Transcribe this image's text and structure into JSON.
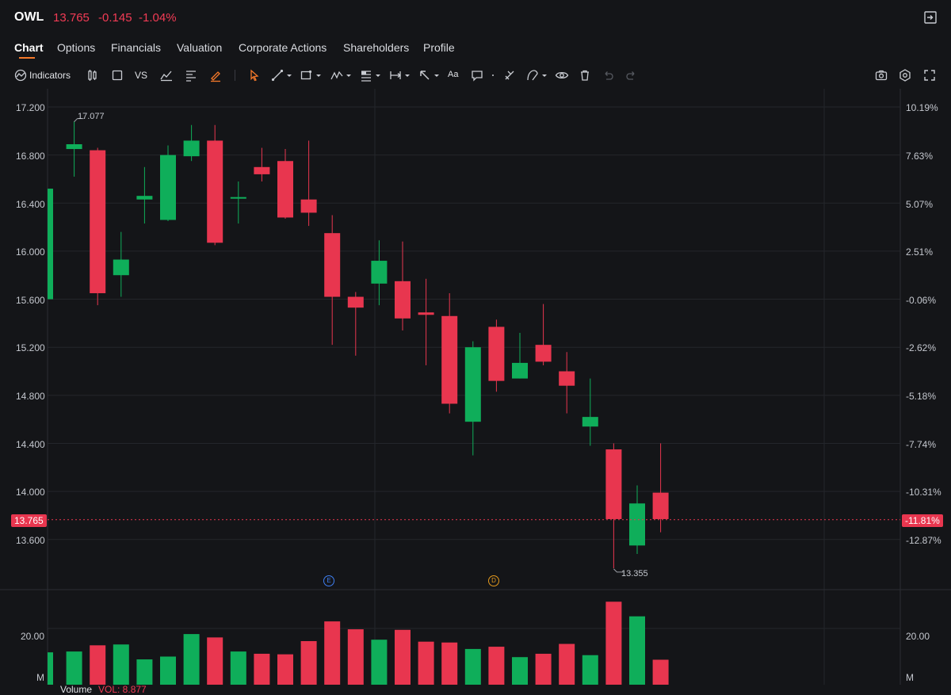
{
  "header": {
    "ticker": "OWL",
    "price": "13.765",
    "change": "-0.145",
    "change_pct": "-1.04%"
  },
  "tabs": [
    {
      "label": "Chart",
      "active": true
    },
    {
      "label": "Options"
    },
    {
      "label": "Financials"
    },
    {
      "label": "Valuation"
    },
    {
      "label": "Corporate Actions"
    },
    {
      "label": "Shareholders"
    },
    {
      "label": "Profile"
    }
  ],
  "toolbar": {
    "indicators_label": "Indicators",
    "vs_label": "VS",
    "text_tool_label": "Aa"
  },
  "colors": {
    "up": "#0fae5a",
    "down": "#e8364f",
    "accent": "#f5792a",
    "background": "#141518",
    "grid": "#24262b"
  },
  "axis": {
    "left_ticks": [
      "17.200",
      "16.800",
      "16.400",
      "16.000",
      "15.600",
      "15.200",
      "14.800",
      "14.400",
      "14.000",
      "13.600"
    ],
    "right_ticks": [
      "10.19%",
      "7.63%",
      "5.07%",
      "2.51%",
      "-0.06%",
      "-2.62%",
      "-5.18%",
      "-7.74%",
      "-10.31%",
      "-12.87%"
    ],
    "current_price_tag": "13.765",
    "current_pct_tag": "-11.81%",
    "volume_tick": "20.00",
    "volume_unit": "M"
  },
  "annotations": {
    "high": "17.077",
    "low": "13.355",
    "earnings_marker": "E",
    "dividend_marker": "D"
  },
  "volume": {
    "title": "Volume",
    "value_label": "VOL: 8.877"
  },
  "chart_data": {
    "type": "candlestick",
    "price_range": [
      13.2,
      17.3
    ],
    "volume_range": [
      0,
      30
    ],
    "candles": [
      {
        "o": 15.6,
        "c": 16.52,
        "h": 16.52,
        "l": 15.6,
        "v": 11.5
      },
      {
        "o": 16.85,
        "c": 16.89,
        "h": 17.08,
        "l": 16.62,
        "v": 11.8
      },
      {
        "o": 16.84,
        "c": 15.65,
        "h": 16.86,
        "l": 15.55,
        "v": 14.0
      },
      {
        "o": 15.8,
        "c": 15.93,
        "h": 16.16,
        "l": 15.62,
        "v": 14.3
      },
      {
        "o": 16.43,
        "c": 16.46,
        "h": 16.7,
        "l": 16.23,
        "v": 9.0
      },
      {
        "o": 16.26,
        "c": 16.8,
        "h": 16.88,
        "l": 16.25,
        "v": 10.0
      },
      {
        "o": 16.79,
        "c": 16.92,
        "h": 17.05,
        "l": 16.75,
        "v": 18.0
      },
      {
        "o": 16.92,
        "c": 16.07,
        "h": 17.05,
        "l": 16.05,
        "v": 16.8
      },
      {
        "o": 16.45,
        "c": 16.45,
        "h": 16.58,
        "l": 16.23,
        "v": 11.8
      },
      {
        "o": 16.7,
        "c": 16.64,
        "h": 16.86,
        "l": 16.58,
        "v": 11.0
      },
      {
        "o": 16.75,
        "c": 16.28,
        "h": 16.85,
        "l": 16.27,
        "v": 10.8
      },
      {
        "o": 16.43,
        "c": 16.32,
        "h": 16.92,
        "l": 16.21,
        "v": 15.5
      },
      {
        "o": 16.15,
        "c": 15.62,
        "h": 16.3,
        "l": 15.22,
        "v": 22.5
      },
      {
        "o": 15.62,
        "c": 15.53,
        "h": 15.66,
        "l": 15.13,
        "v": 19.7
      },
      {
        "o": 15.73,
        "c": 15.92,
        "h": 16.09,
        "l": 15.55,
        "v": 16.0
      },
      {
        "o": 15.75,
        "c": 15.44,
        "h": 16.08,
        "l": 15.34,
        "v": 19.5
      },
      {
        "o": 15.49,
        "c": 15.47,
        "h": 15.77,
        "l": 15.05,
        "v": 15.3
      },
      {
        "o": 15.46,
        "c": 14.73,
        "h": 15.65,
        "l": 14.65,
        "v": 15.0
      },
      {
        "o": 14.58,
        "c": 15.2,
        "h": 15.25,
        "l": 14.3,
        "v": 12.7
      },
      {
        "o": 15.37,
        "c": 14.92,
        "h": 15.43,
        "l": 14.83,
        "v": 13.5
      },
      {
        "o": 14.94,
        "c": 15.07,
        "h": 15.32,
        "l": 14.94,
        "v": 9.8
      },
      {
        "o": 15.22,
        "c": 15.08,
        "h": 15.56,
        "l": 15.05,
        "v": 11.0
      },
      {
        "o": 15.0,
        "c": 14.88,
        "h": 15.16,
        "l": 14.65,
        "v": 14.5
      },
      {
        "o": 14.54,
        "c": 14.62,
        "h": 14.94,
        "l": 14.38,
        "v": 10.5
      },
      {
        "o": 14.35,
        "c": 13.77,
        "h": 14.4,
        "l": 13.36,
        "v": 29.5
      },
      {
        "o": 13.55,
        "c": 13.9,
        "h": 14.05,
        "l": 13.48,
        "v": 24.3
      },
      {
        "o": 13.99,
        "c": 13.77,
        "h": 14.4,
        "l": 13.66,
        "v": 8.877
      }
    ]
  }
}
